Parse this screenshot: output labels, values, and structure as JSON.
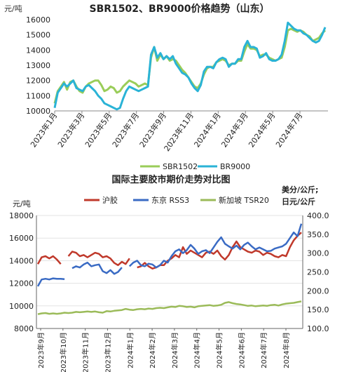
{
  "chart_data": [
    {
      "type": "line",
      "title": "SBR1502、BR9000价格趋势（山东）",
      "y_unit": "元/吨",
      "ylim": [
        10000,
        16000
      ],
      "y_ticks": [
        10000,
        11000,
        12000,
        13000,
        14000,
        15000,
        16000
      ],
      "x_labels": [
        "2023年1月",
        "2023年3月",
        "2023年5月",
        "2023年7月",
        "2023年9月",
        "2023年11月",
        "2024年1月",
        "2024年3月",
        "2024年5月",
        "2024年7月"
      ],
      "legend_position": "bottom",
      "grid": false,
      "series": [
        {
          "name": "SBR1502",
          "color": "#9acd59",
          "values": [
            10500,
            11300,
            11600,
            11900,
            11400,
            11900,
            12000,
            11600,
            11300,
            11200,
            11600,
            11800,
            11900,
            12000,
            12000,
            11700,
            11300,
            11400,
            11600,
            11500,
            11200,
            11300,
            11600,
            11800,
            12000,
            11900,
            11800,
            11600,
            11700,
            11800,
            11700,
            13500,
            14200,
            13300,
            13700,
            13400,
            13600,
            13300,
            13400,
            13300,
            13000,
            12700,
            12500,
            12200,
            11900,
            11600,
            11500,
            11800,
            12400,
            12800,
            12900,
            12900,
            13200,
            13300,
            13400,
            13300,
            13000,
            13100,
            13100,
            13300,
            13300,
            13900,
            14400,
            14100,
            14100,
            14000,
            13600,
            13700,
            13700,
            13500,
            13400,
            13300,
            13400,
            13500,
            14200,
            15300,
            15400,
            15300,
            15200,
            15300,
            15200,
            15000,
            14900,
            14600,
            14700,
            14800,
            15100,
            15300
          ]
        },
        {
          "name": "BR9000",
          "color": "#2ab3d6",
          "values": [
            10200,
            11200,
            11500,
            11800,
            11600,
            11800,
            12000,
            11500,
            11400,
            11300,
            11600,
            11700,
            11500,
            11300,
            11000,
            10800,
            10500,
            10400,
            10300,
            10200,
            10100,
            10200,
            10800,
            11300,
            11600,
            11500,
            11400,
            11300,
            11400,
            11500,
            11600,
            13700,
            14200,
            13500,
            13800,
            13400,
            13600,
            13400,
            13600,
            13100,
            12800,
            12500,
            12400,
            12200,
            11800,
            11500,
            11300,
            11700,
            12600,
            12900,
            12900,
            12800,
            13200,
            13400,
            13500,
            13400,
            12900,
            13100,
            13100,
            13400,
            13400,
            14200,
            14600,
            14200,
            14200,
            14100,
            13500,
            13600,
            13800,
            13400,
            13300,
            13300,
            13400,
            13700,
            14600,
            15800,
            15600,
            15400,
            15300,
            15300,
            15100,
            15000,
            14800,
            14600,
            14500,
            14600,
            15000,
            15500
          ]
        }
      ]
    },
    {
      "type": "line",
      "title": "国际主要胶市期价走势对比图",
      "y_unit_left": "元/吨",
      "y_unit_right_line1": "美分/公斤;",
      "y_unit_right_line2": "日元/公斤",
      "ylim_left": [
        8000,
        18000
      ],
      "ylim_right": [
        100,
        400
      ],
      "y_ticks_left": [
        8000,
        10000,
        12000,
        14000,
        16000,
        18000
      ],
      "y_ticks_right": [
        "100.0",
        "150.0",
        "200.0",
        "250.0",
        "300.0",
        "350.0",
        "400.0"
      ],
      "x_labels": [
        "2023年9月",
        "2023年10月",
        "2023年11月",
        "2023年12月",
        "2024年1月",
        "2024年2月",
        "2024年3月",
        "2024年4月",
        "2024年5月",
        "2024年6月",
        "2024年7月",
        "2024年8月"
      ],
      "legend_position": "top",
      "grid": true,
      "series": [
        {
          "name": "沪胶",
          "axis": "left",
          "color": "#c0392b",
          "values": [
            13700,
            14300,
            14400,
            14200,
            14400,
            14100,
            13700,
            null,
            14400,
            14800,
            14700,
            14400,
            14500,
            14300,
            14500,
            14700,
            14600,
            14300,
            14400,
            14200,
            13800,
            13600,
            13900,
            13700,
            14200,
            null,
            13400,
            13500,
            13800,
            13500,
            13300,
            13400,
            13600,
            13600,
            14000,
            14200,
            14500,
            14300,
            15200,
            14600,
            14900,
            14700,
            14500,
            14300,
            14700,
            14800,
            14600,
            14900,
            14400,
            14100,
            14500,
            15200,
            15700,
            15200,
            15000,
            14800,
            14700,
            14900,
            14800,
            14500,
            14700,
            14600,
            14400,
            14300,
            14500,
            14400,
            15200,
            15800,
            16200,
            16500
          ]
        },
        {
          "name": "东京 RSS3",
          "axis": "right",
          "color": "#3a6bc4",
          "values": [
            212,
            230,
            232,
            230,
            233,
            232,
            232,
            231,
            null,
            260,
            265,
            262,
            270,
            275,
            265,
            268,
            270,
            252,
            247,
            255,
            245,
            250,
            262,
            null,
            265,
            275,
            280,
            268,
            265,
            272,
            270,
            262,
            268,
            280,
            275,
            292,
            305,
            310,
            300,
            308,
            322,
            312,
            298,
            305,
            308,
            300,
            315,
            330,
            342,
            325,
            318,
            312,
            320,
            310,
            322,
            328,
            318,
            310,
            315,
            310,
            305,
            306,
            312,
            315,
            318,
            325,
            340,
            355,
            345,
            378
          ]
        },
        {
          "name": "新加坡 TSR20",
          "axis": "right",
          "color": "#9bbb59",
          "values": [
            138,
            140,
            141,
            139,
            140,
            139,
            140,
            142,
            141,
            142,
            144,
            143,
            144,
            145,
            144,
            145,
            143,
            142,
            146,
            145,
            147,
            148,
            149,
            152,
            150,
            149,
            151,
            152,
            151,
            153,
            152,
            154,
            155,
            154,
            156,
            158,
            157,
            160,
            159,
            157,
            158,
            156,
            159,
            160,
            161,
            162,
            160,
            161,
            163,
            168,
            170,
            167,
            165,
            164,
            162,
            160,
            161,
            159,
            160,
            161,
            160,
            162,
            163,
            161,
            164,
            166,
            167,
            168,
            170,
            172
          ]
        }
      ]
    }
  ]
}
